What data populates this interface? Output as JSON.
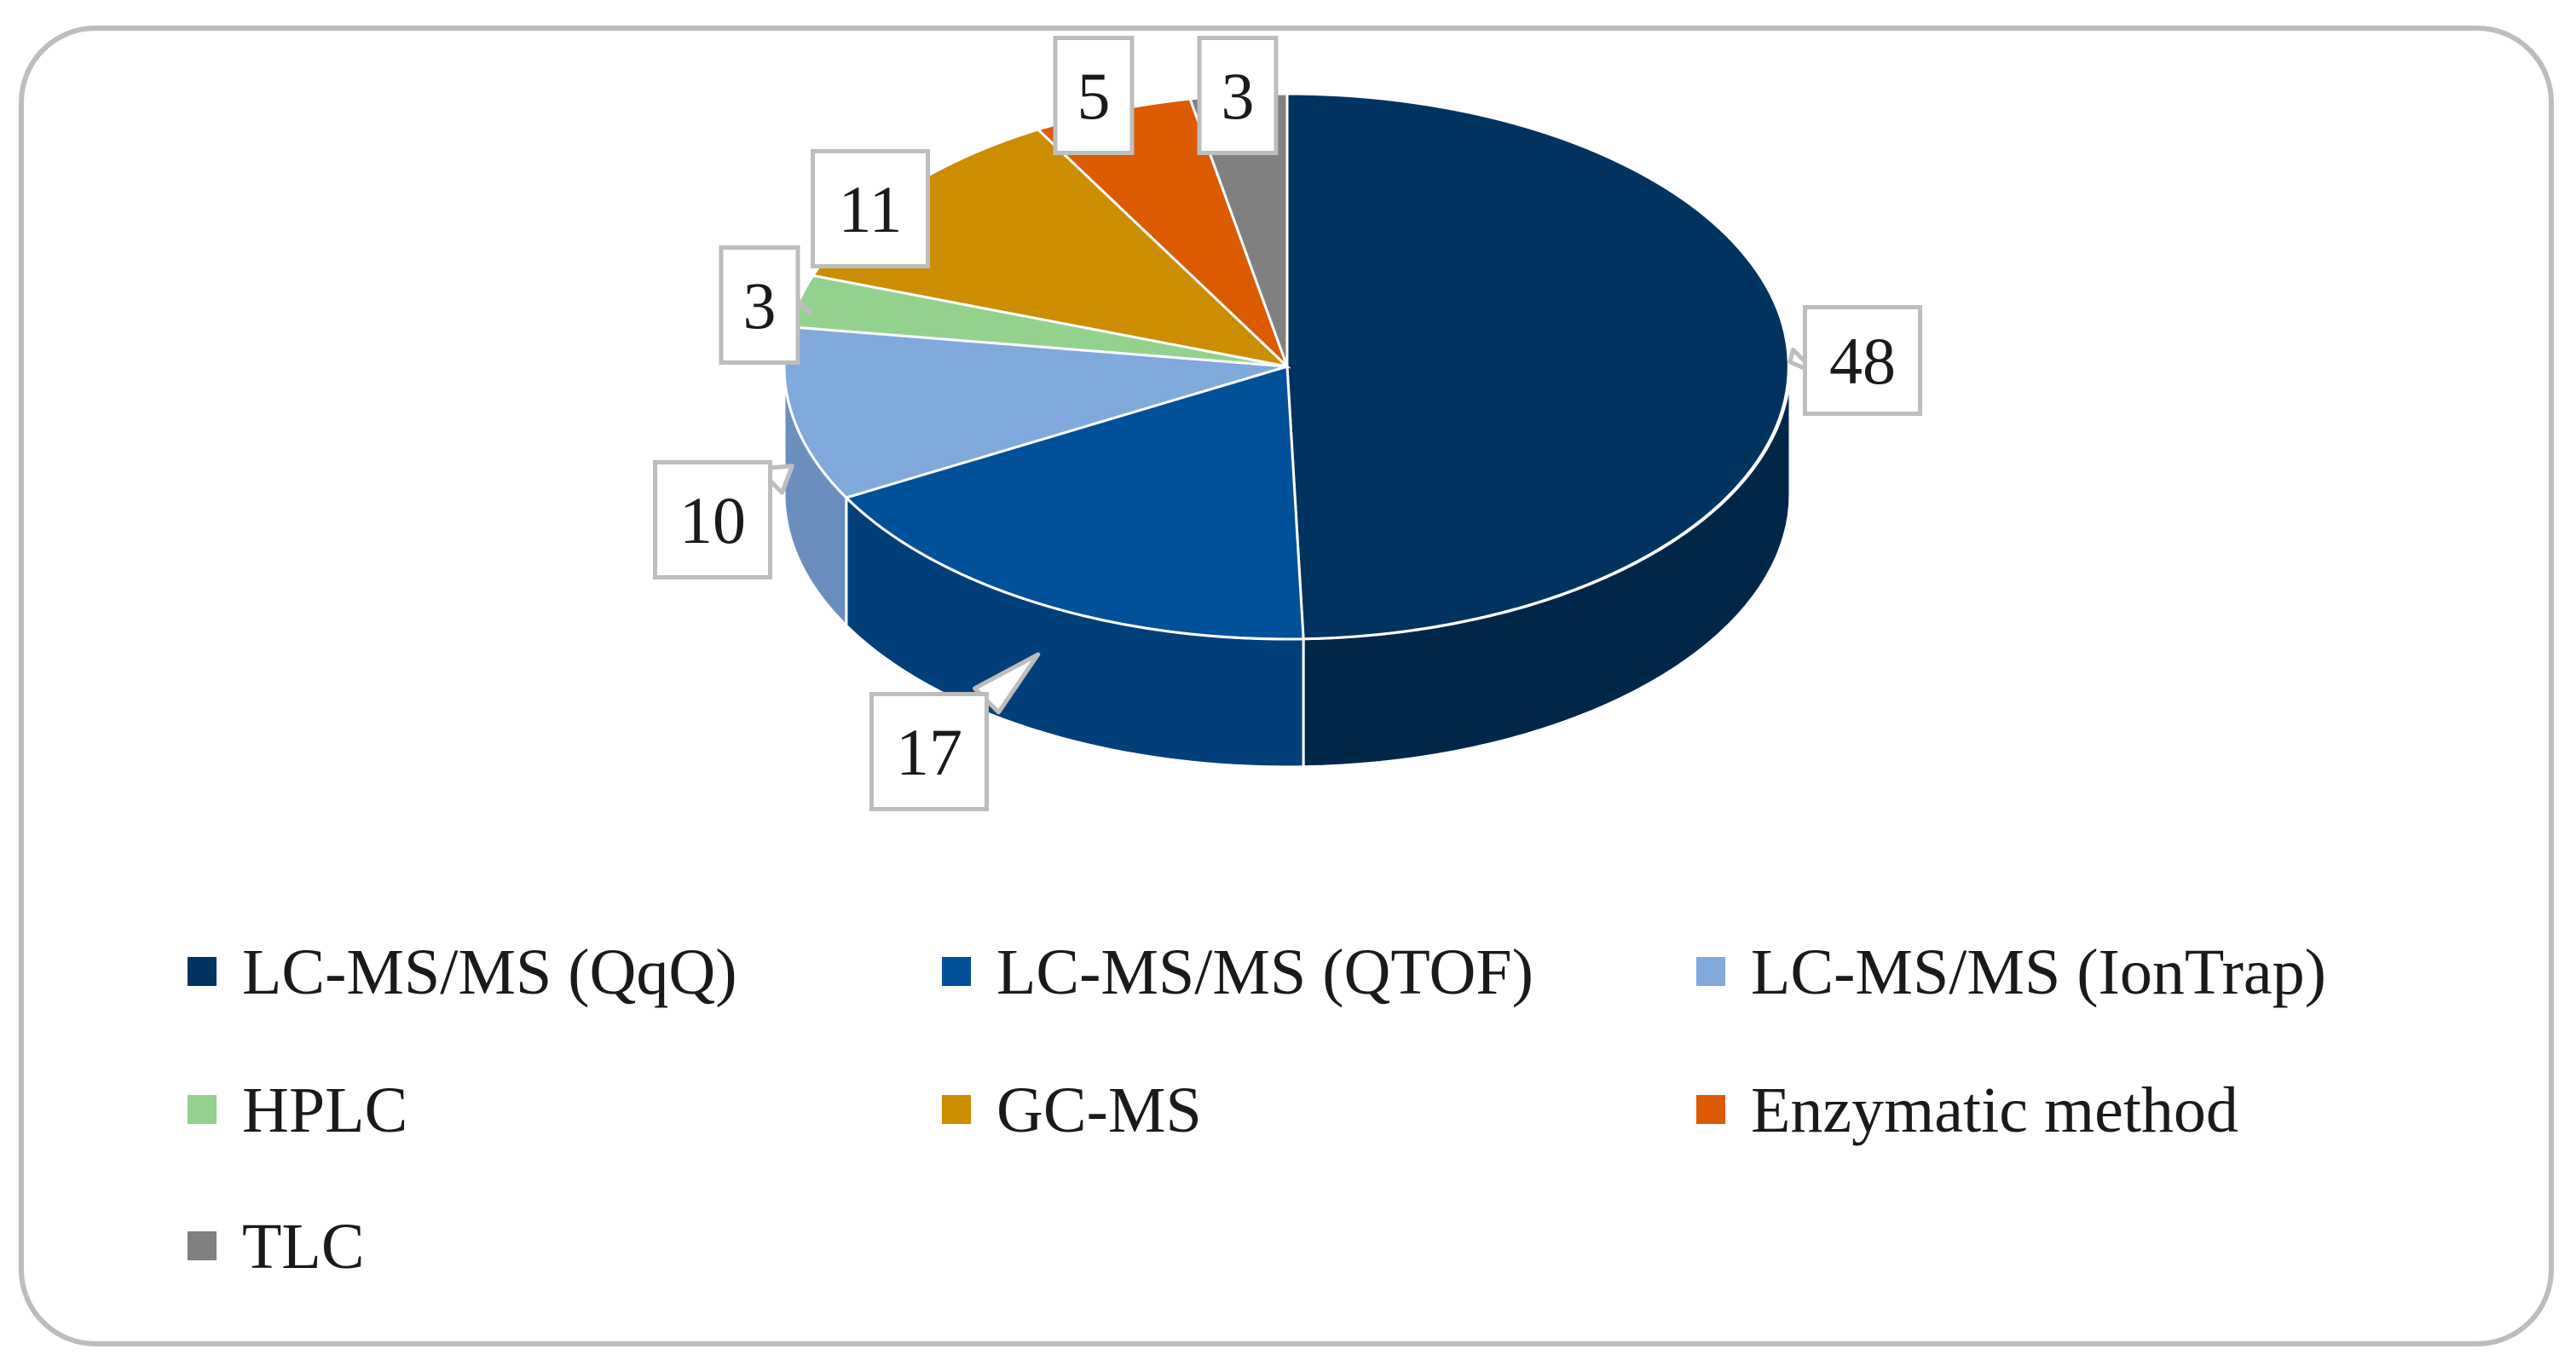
{
  "chart_data": {
    "type": "pie",
    "title": "",
    "three_d": true,
    "categories": [
      "LC-MS/MS (QqQ)",
      "LC-MS/MS (QTOF)",
      "LC-MS/MS (IonTrap)",
      "HPLC",
      "GC-MS",
      "Enzymatic method",
      "TLC"
    ],
    "values": [
      48,
      17,
      10,
      3,
      11,
      5,
      3
    ],
    "data_labels": [
      "48",
      "17",
      "10",
      "3",
      "11",
      "5",
      "3"
    ],
    "colors": [
      "#00335f",
      "#00509a",
      "#80a9dc",
      "#93d28d",
      "#cc8d00",
      "#dc5a00",
      "#808080"
    ],
    "side_colors": [
      "#00264a",
      "#003f7a",
      "#6a8fbf",
      "#79b073",
      "#a87400",
      "#b84a00",
      "#666666"
    ],
    "legend": {
      "position": "bottom",
      "columns": 3
    }
  }
}
